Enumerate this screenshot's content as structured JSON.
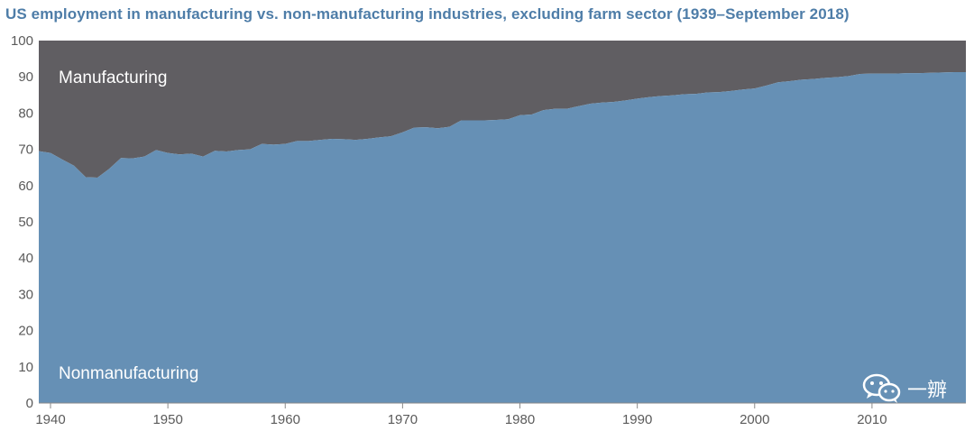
{
  "chart_data": {
    "type": "area",
    "title": "US employment in manufacturing vs. non-manufacturing industries, excluding farm sector (1939–September 2018)",
    "xlabel": "",
    "ylabel": "",
    "ylim": [
      0,
      100
    ],
    "xlim": [
      1939,
      2018
    ],
    "yticks": [
      "0",
      "10",
      "20",
      "30",
      "40",
      "50",
      "60",
      "70",
      "80",
      "90",
      "100"
    ],
    "xticks": [
      "1940",
      "1950",
      "1960",
      "1970",
      "1980",
      "1990",
      "2000",
      "2010"
    ],
    "grid": false,
    "legend": "none",
    "x": [
      1939,
      1940,
      1941,
      1942,
      1943,
      1944,
      1945,
      1946,
      1947,
      1948,
      1949,
      1950,
      1951,
      1952,
      1953,
      1954,
      1955,
      1956,
      1957,
      1958,
      1959,
      1960,
      1961,
      1962,
      1963,
      1964,
      1965,
      1966,
      1967,
      1968,
      1969,
      1970,
      1971,
      1972,
      1973,
      1974,
      1975,
      1976,
      1977,
      1978,
      1979,
      1980,
      1981,
      1982,
      1983,
      1984,
      1985,
      1986,
      1987,
      1988,
      1989,
      1990,
      1991,
      1992,
      1993,
      1994,
      1995,
      1996,
      1997,
      1998,
      1999,
      2000,
      2001,
      2002,
      2003,
      2004,
      2005,
      2006,
      2007,
      2008,
      2009,
      2010,
      2011,
      2012,
      2013,
      2014,
      2015,
      2016,
      2017,
      2018
    ],
    "series": [
      {
        "name": "Nonmanufacturing",
        "color": "#6690b5",
        "values": [
          69.5,
          69.0,
          67.2,
          65.5,
          62.3,
          62.2,
          64.6,
          67.6,
          67.5,
          68.0,
          69.8,
          69.0,
          68.6,
          68.8,
          68.0,
          69.6,
          69.4,
          69.8,
          70.0,
          71.5,
          71.3,
          71.5,
          72.3,
          72.3,
          72.6,
          72.9,
          72.8,
          72.6,
          72.9,
          73.3,
          73.6,
          74.7,
          76.0,
          76.1,
          75.8,
          76.2,
          78.0,
          78.0,
          78.0,
          78.1,
          78.3,
          79.4,
          79.6,
          80.8,
          81.2,
          81.2,
          81.9,
          82.6,
          82.9,
          83.1,
          83.5,
          84.0,
          84.4,
          84.7,
          84.9,
          85.2,
          85.3,
          85.7,
          85.8,
          86.1,
          86.5,
          86.8,
          87.6,
          88.5,
          88.8,
          89.2,
          89.4,
          89.7,
          89.9,
          90.2,
          90.8,
          90.9,
          90.9,
          90.9,
          91.0,
          91.0,
          91.1,
          91.2,
          91.3,
          91.3
        ]
      },
      {
        "name": "Manufacturing",
        "color": "#605e62",
        "values": [
          30.5,
          31.0,
          32.8,
          34.5,
          37.7,
          37.8,
          35.4,
          32.4,
          32.5,
          32.0,
          30.2,
          31.0,
          31.4,
          31.2,
          32.0,
          30.4,
          30.6,
          30.2,
          30.0,
          28.5,
          28.7,
          28.5,
          27.7,
          27.7,
          27.4,
          27.1,
          27.2,
          27.4,
          27.1,
          26.7,
          26.4,
          25.3,
          24.0,
          23.9,
          24.2,
          23.8,
          22.0,
          22.0,
          22.0,
          21.9,
          21.7,
          20.6,
          20.4,
          19.2,
          18.8,
          18.8,
          18.1,
          17.4,
          17.1,
          16.9,
          16.5,
          16.0,
          15.6,
          15.3,
          15.1,
          14.8,
          14.7,
          14.3,
          14.2,
          13.9,
          13.5,
          13.2,
          12.4,
          11.5,
          11.2,
          10.8,
          10.6,
          10.3,
          10.1,
          9.8,
          9.2,
          9.1,
          9.1,
          9.1,
          9.0,
          9.0,
          8.9,
          8.8,
          8.7,
          8.7
        ]
      }
    ],
    "annotations": [
      {
        "text": "Manufacturing",
        "x": 1941,
        "y": 90
      },
      {
        "text": "Nonmanufacturing",
        "x": 1941,
        "y": 8.5
      }
    ]
  },
  "watermark": {
    "icon": "wechat-icon",
    "text": "一辧"
  }
}
